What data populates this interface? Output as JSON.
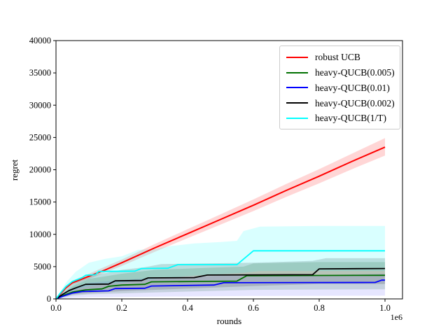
{
  "figure": {
    "background": "#ffffff",
    "xlabel": "rounds",
    "ylabel": "regret",
    "x_offset_label": "1e6"
  },
  "axes": {
    "frame_color": "#000000",
    "x_ticks": [
      {
        "value": 0.0,
        "label": "0.0"
      },
      {
        "value": 0.2,
        "label": "0.2"
      },
      {
        "value": 0.4,
        "label": "0.4"
      },
      {
        "value": 0.6,
        "label": "0.6"
      },
      {
        "value": 0.8,
        "label": "0.8"
      },
      {
        "value": 1.0,
        "label": "1.0"
      }
    ],
    "y_ticks": [
      {
        "value": 0,
        "label": "0"
      },
      {
        "value": 5000,
        "label": "5000"
      },
      {
        "value": 10000,
        "label": "10000"
      },
      {
        "value": 15000,
        "label": "15000"
      },
      {
        "value": 20000,
        "label": "20000"
      },
      {
        "value": 25000,
        "label": "25000"
      },
      {
        "value": 30000,
        "label": "30000"
      },
      {
        "value": 35000,
        "label": "35000"
      },
      {
        "value": 40000,
        "label": "40000"
      }
    ]
  },
  "chart_data": {
    "type": "line",
    "title": "",
    "xlabel": "rounds",
    "ylabel": "regret",
    "x_units": "1e6 rounds",
    "xlim": [
      0,
      1.053
    ],
    "ylim": [
      0,
      40000
    ],
    "grid": false,
    "legend_position": "upper right",
    "series": [
      {
        "name": "robust UCB",
        "color": "#ff0000",
        "width": 2.0,
        "points": [
          [
            0,
            0
          ],
          [
            0.01,
            600
          ],
          [
            0.03,
            1700
          ],
          [
            0.05,
            2500
          ],
          [
            0.08,
            3100
          ],
          [
            0.1,
            3500
          ],
          [
            0.15,
            4500
          ],
          [
            0.2,
            5600
          ],
          [
            0.3,
            7900
          ],
          [
            0.4,
            10100
          ],
          [
            0.5,
            12300
          ],
          [
            0.6,
            14500
          ],
          [
            0.7,
            16800
          ],
          [
            0.8,
            19000
          ],
          [
            0.9,
            21300
          ],
          [
            1.0,
            23500
          ]
        ]
      },
      {
        "name": "heavy-QUCB(0.005)",
        "color": "#007000",
        "width": 1.8,
        "points": [
          [
            0,
            0
          ],
          [
            0.02,
            500
          ],
          [
            0.05,
            1050
          ],
          [
            0.09,
            1400
          ],
          [
            0.14,
            1550
          ],
          [
            0.16,
            1950
          ],
          [
            0.2,
            2150
          ],
          [
            0.27,
            2250
          ],
          [
            0.29,
            2650
          ],
          [
            0.42,
            2700
          ],
          [
            0.55,
            2750
          ],
          [
            0.58,
            3600
          ],
          [
            1.0,
            3650
          ]
        ]
      },
      {
        "name": "heavy-QUCB(0.01)",
        "color": "#0000ff",
        "width": 1.8,
        "points": [
          [
            0,
            0
          ],
          [
            0.02,
            400
          ],
          [
            0.05,
            900
          ],
          [
            0.08,
            1150
          ],
          [
            0.16,
            1250
          ],
          [
            0.18,
            1600
          ],
          [
            0.27,
            1650
          ],
          [
            0.29,
            2000
          ],
          [
            0.48,
            2150
          ],
          [
            0.51,
            2500
          ],
          [
            0.97,
            2550
          ],
          [
            0.99,
            2900
          ],
          [
            1.0,
            2900
          ]
        ]
      },
      {
        "name": "heavy-QUCB(0.002)",
        "color": "#000000",
        "width": 1.8,
        "points": [
          [
            0,
            0
          ],
          [
            0.02,
            700
          ],
          [
            0.04,
            1300
          ],
          [
            0.06,
            1700
          ],
          [
            0.09,
            2250
          ],
          [
            0.16,
            2300
          ],
          [
            0.18,
            2800
          ],
          [
            0.26,
            2850
          ],
          [
            0.28,
            3250
          ],
          [
            0.42,
            3300
          ],
          [
            0.46,
            3700
          ],
          [
            0.78,
            3750
          ],
          [
            0.8,
            4650
          ],
          [
            1.0,
            4700
          ]
        ]
      },
      {
        "name": "heavy-QUCB(1/T)",
        "color": "#00ffff",
        "width": 1.8,
        "points": [
          [
            0,
            0
          ],
          [
            0.01,
            700
          ],
          [
            0.03,
            1900
          ],
          [
            0.05,
            2700
          ],
          [
            0.08,
            3300
          ],
          [
            0.09,
            3650
          ],
          [
            0.12,
            3750
          ],
          [
            0.13,
            4250
          ],
          [
            0.24,
            4300
          ],
          [
            0.26,
            4700
          ],
          [
            0.34,
            4750
          ],
          [
            0.37,
            5300
          ],
          [
            0.55,
            5300
          ],
          [
            0.6,
            7450
          ],
          [
            1.0,
            7450
          ]
        ]
      }
    ],
    "bands": [
      {
        "name": "robust UCB band",
        "color": "#ff0000",
        "opacity": 0.16,
        "upper": [
          [
            0,
            0
          ],
          [
            0.05,
            2800
          ],
          [
            0.1,
            3900
          ],
          [
            0.2,
            6100
          ],
          [
            0.3,
            8500
          ],
          [
            0.4,
            10800
          ],
          [
            0.5,
            13100
          ],
          [
            0.6,
            15400
          ],
          [
            0.7,
            17800
          ],
          [
            0.8,
            20100
          ],
          [
            0.9,
            22500
          ],
          [
            1.0,
            24900
          ]
        ],
        "lower": [
          [
            0,
            0
          ],
          [
            0.05,
            2200
          ],
          [
            0.1,
            3100
          ],
          [
            0.2,
            5100
          ],
          [
            0.3,
            7300
          ],
          [
            0.4,
            9400
          ],
          [
            0.5,
            11500
          ],
          [
            0.6,
            13600
          ],
          [
            0.7,
            15800
          ],
          [
            0.8,
            17900
          ],
          [
            0.9,
            20100
          ],
          [
            1.0,
            22200
          ]
        ]
      },
      {
        "name": "heavy-QUCB(0.005) band",
        "color": "#006000",
        "opacity": 0.15,
        "upper": [
          [
            0,
            0
          ],
          [
            0.05,
            2000
          ],
          [
            0.1,
            3100
          ],
          [
            0.2,
            3900
          ],
          [
            0.3,
            4500
          ],
          [
            0.45,
            4800
          ],
          [
            0.57,
            5000
          ],
          [
            0.6,
            5500
          ],
          [
            0.8,
            5700
          ],
          [
            1.0,
            5700
          ]
        ],
        "lower": [
          [
            0,
            0
          ],
          [
            0.05,
            500
          ],
          [
            0.1,
            700
          ],
          [
            0.3,
            1000
          ],
          [
            0.6,
            1400
          ],
          [
            1.0,
            1500
          ]
        ]
      },
      {
        "name": "heavy-QUCB(0.01) band",
        "color": "#4040ff",
        "opacity": 0.13,
        "upper": [
          [
            0,
            0
          ],
          [
            0.05,
            1700
          ],
          [
            0.1,
            2500
          ],
          [
            0.2,
            2900
          ],
          [
            0.3,
            3300
          ],
          [
            0.5,
            3600
          ],
          [
            0.8,
            3700
          ],
          [
            0.99,
            3900
          ],
          [
            1.0,
            3900
          ]
        ],
        "lower": [
          [
            0,
            0
          ],
          [
            0.05,
            150
          ],
          [
            0.1,
            250
          ],
          [
            0.3,
            350
          ],
          [
            0.6,
            450
          ],
          [
            1.0,
            500
          ]
        ]
      },
      {
        "name": "heavy-QUCB(0.002) band",
        "color": "#000000",
        "opacity": 0.15,
        "upper": [
          [
            0,
            0
          ],
          [
            0.05,
            2300
          ],
          [
            0.1,
            3600
          ],
          [
            0.15,
            4000
          ],
          [
            0.2,
            4500
          ],
          [
            0.27,
            4900
          ],
          [
            0.32,
            5400
          ],
          [
            0.6,
            5600
          ],
          [
            0.78,
            5900
          ],
          [
            0.82,
            6300
          ],
          [
            1.0,
            6300
          ]
        ],
        "lower": [
          [
            0,
            0
          ],
          [
            0.05,
            700
          ],
          [
            0.1,
            900
          ],
          [
            0.2,
            1200
          ],
          [
            0.4,
            1600
          ],
          [
            0.6,
            2000
          ],
          [
            0.8,
            2300
          ],
          [
            1.0,
            2300
          ]
        ]
      },
      {
        "name": "heavy-QUCB(1/T) band",
        "color": "#00ffff",
        "opacity": 0.15,
        "upper": [
          [
            0,
            0
          ],
          [
            0.03,
            2500
          ],
          [
            0.06,
            4200
          ],
          [
            0.1,
            5600
          ],
          [
            0.15,
            6200
          ],
          [
            0.2,
            6600
          ],
          [
            0.25,
            7600
          ],
          [
            0.3,
            7700
          ],
          [
            0.35,
            8200
          ],
          [
            0.42,
            8600
          ],
          [
            0.5,
            8800
          ],
          [
            0.55,
            9000
          ],
          [
            0.57,
            10500
          ],
          [
            0.62,
            11200
          ],
          [
            0.8,
            11300
          ],
          [
            1.0,
            11300
          ]
        ],
        "lower": [
          [
            0,
            0
          ],
          [
            0.03,
            800
          ],
          [
            0.06,
            1500
          ],
          [
            0.1,
            2000
          ],
          [
            0.2,
            2500
          ],
          [
            0.3,
            3100
          ],
          [
            0.42,
            3600
          ],
          [
            0.56,
            4000
          ],
          [
            0.62,
            4300
          ],
          [
            1.0,
            4300
          ]
        ]
      }
    ]
  },
  "legend": {
    "items": [
      {
        "label": "robust UCB",
        "color": "#ff0000"
      },
      {
        "label": "heavy-QUCB(0.005)",
        "color": "#007000"
      },
      {
        "label": "heavy-QUCB(0.01)",
        "color": "#0000ff"
      },
      {
        "label": "heavy-QUCB(0.002)",
        "color": "#000000"
      },
      {
        "label": "heavy-QUCB(1/T)",
        "color": "#00ffff"
      }
    ]
  }
}
